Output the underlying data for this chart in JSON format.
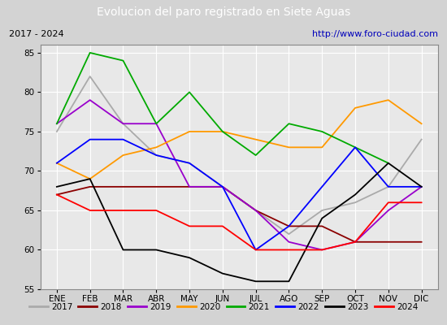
{
  "title": "Evolucion del paro registrado en Siete Aguas",
  "subtitle_left": "2017 - 2024",
  "subtitle_right": "http://www.foro-ciudad.com",
  "months": [
    "ENE",
    "FEB",
    "MAR",
    "ABR",
    "MAY",
    "JUN",
    "JUL",
    "AGO",
    "SEP",
    "OCT",
    "NOV",
    "DIC"
  ],
  "ylim": [
    55,
    86
  ],
  "yticks": [
    55,
    60,
    65,
    70,
    75,
    80,
    85
  ],
  "series": {
    "2017": {
      "color": "#aaaaaa",
      "values": [
        75,
        82,
        76,
        72,
        71,
        68,
        65,
        62,
        65,
        66,
        68,
        74
      ]
    },
    "2018": {
      "color": "#8b0000",
      "values": [
        67,
        68,
        68,
        68,
        68,
        68,
        65,
        63,
        63,
        61,
        61,
        61
      ]
    },
    "2019": {
      "color": "#9900cc",
      "values": [
        76,
        79,
        76,
        76,
        68,
        68,
        65,
        61,
        60,
        61,
        65,
        68
      ]
    },
    "2020": {
      "color": "#ff9900",
      "values": [
        71,
        69,
        72,
        73,
        75,
        75,
        74,
        73,
        73,
        78,
        79,
        76
      ]
    },
    "2021": {
      "color": "#00aa00",
      "values": [
        76,
        85,
        84,
        76,
        80,
        75,
        72,
        76,
        75,
        73,
        71,
        null
      ]
    },
    "2022": {
      "color": "#0000ff",
      "values": [
        71,
        74,
        74,
        72,
        71,
        68,
        60,
        63,
        68,
        73,
        68,
        68
      ]
    },
    "2023": {
      "color": "#000000",
      "values": [
        68,
        69,
        60,
        60,
        59,
        57,
        56,
        56,
        64,
        67,
        71,
        68
      ]
    },
    "2024": {
      "color": "#ff0000",
      "values": [
        67,
        65,
        65,
        65,
        63,
        63,
        60,
        60,
        60,
        61,
        66,
        66
      ]
    }
  },
  "background_color": "#d3d3d3",
  "plot_bg_color": "#e8e8e8",
  "title_bg_color": "#4472c4",
  "title_color": "#ffffff",
  "header_bg_color": "#ffffff",
  "legend_bg_color": "#f5f5f5"
}
